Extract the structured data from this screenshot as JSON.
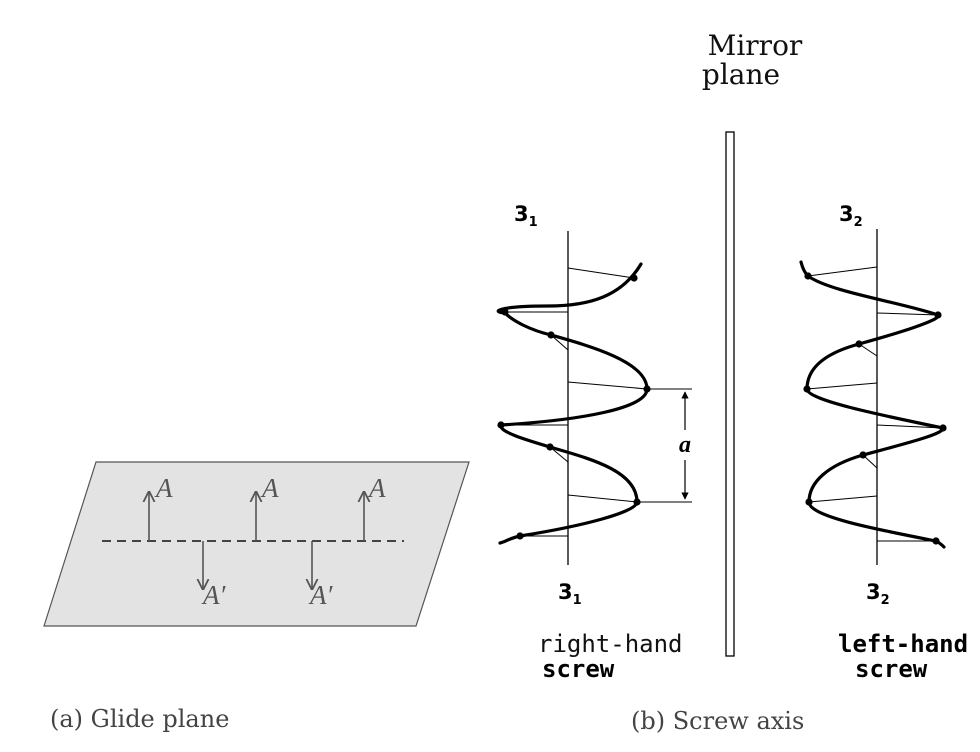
{
  "panel_a": {
    "caption": "(a) Glide plane",
    "label_up": "A",
    "label_down": "A′",
    "plane_fill": "#e3e3e3",
    "arrow_color": "#555555"
  },
  "panel_b": {
    "caption": "(b) Screw axis",
    "mirror_title_line1": "Mirror",
    "mirror_title_line2": "plane",
    "right_axis": {
      "base": "3",
      "sub": "1"
    },
    "left_axis": {
      "base": "3",
      "sub": "2"
    },
    "right_label_line1": "right-hand",
    "right_label_line2": "screw",
    "left_label_line1": "left-hand",
    "left_label_line2": "screw",
    "period_label": "a"
  }
}
